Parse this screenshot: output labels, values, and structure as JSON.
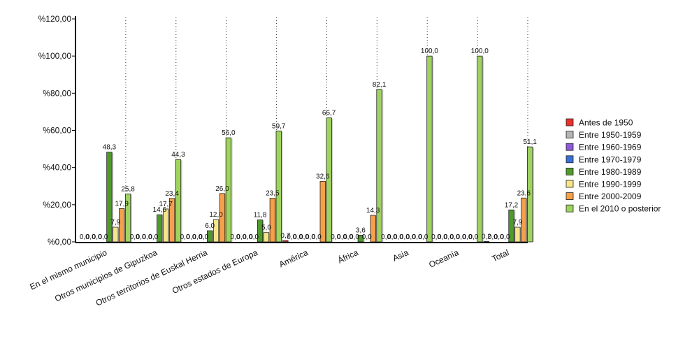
{
  "chart_data": {
    "type": "bar",
    "categories": [
      "En el mismo municipio",
      "Otros municipios de Gipuzkoa",
      "Otros territorios de Euskal Herria",
      "Otros estados de Europa",
      "América",
      "África",
      "Asia",
      "Oceanía",
      "Total"
    ],
    "ylim": [
      0,
      120
    ],
    "ytick_labels": [
      "%0,00",
      "%20,00",
      "%40,00",
      "%60,00",
      "%80,00",
      "%100,00",
      "%120,00"
    ],
    "grid": "vertical-dotted",
    "legend_position": "right",
    "series": [
      {
        "name": "Antes de 1950",
        "color": "#e8312a",
        "values": [
          0,
          0,
          0,
          0,
          0.7,
          0,
          0,
          0,
          0.2
        ],
        "labels": [
          "0,0",
          "0,0",
          "0,0",
          "0,0",
          "0,7",
          "0,0",
          "0,0",
          "0,0",
          "0,2"
        ]
      },
      {
        "name": "Entre 1950-1959",
        "color": "#b5b5b5",
        "values": [
          0,
          0,
          0,
          0,
          0,
          0,
          0,
          0,
          0
        ],
        "labels": [
          "0,0",
          "0,0",
          "0,0",
          "0,0",
          "0,0",
          "0,0",
          "0,0",
          "0,0",
          "0,0"
        ]
      },
      {
        "name": "Entre 1960-1969",
        "color": "#8e5ad6",
        "values": [
          0,
          0,
          0,
          0,
          0,
          0,
          0,
          0,
          0
        ],
        "labels": [
          "0,0",
          "0,0",
          "0,0",
          "0,0",
          "0,0",
          "0,0",
          "0,0",
          "0,0",
          "0,0"
        ]
      },
      {
        "name": "Entre 1970-1979",
        "color": "#3a6fd6",
        "values": [
          0,
          0,
          0,
          0,
          0,
          0,
          0,
          0,
          0
        ],
        "labels": [
          "0,0",
          "0,0",
          "0,0",
          "0,0",
          "0,0",
          "0,0",
          "0,0",
          "0,0",
          "0,0"
        ]
      },
      {
        "name": "Entre 1980-1989",
        "color": "#4f9a2b",
        "values": [
          48.3,
          14.6,
          6.0,
          11.8,
          0,
          3.6,
          0,
          0,
          17.2
        ],
        "labels": [
          "48,3",
          "14,6",
          "6,0",
          "11,8",
          "0,0",
          "3,6",
          "0,0",
          "0,0",
          "17,2"
        ]
      },
      {
        "name": "Entre 1990-1999",
        "color": "#f7e58a",
        "values": [
          7.9,
          17.7,
          12.0,
          5.0,
          0,
          0,
          0,
          0,
          7.9
        ],
        "labels": [
          "7,9",
          "17,7",
          "12,0",
          "5,0",
          "0,0",
          "0,0",
          "0,0",
          "0,0",
          "7,9"
        ]
      },
      {
        "name": "Entre 2000-2009",
        "color": "#f6a04c",
        "values": [
          17.9,
          23.4,
          26.0,
          23.5,
          32.6,
          14.3,
          0,
          0,
          23.6
        ],
        "labels": [
          "17,9",
          "23,4",
          "26,0",
          "23,5",
          "32,6",
          "14,3",
          "0,0",
          "0,0",
          "23,6"
        ]
      },
      {
        "name": "En el 2010 o posterior",
        "color": "#9fd35f",
        "values": [
          25.8,
          44.3,
          56.0,
          59.7,
          66.7,
          82.1,
          100.0,
          100.0,
          51.1
        ],
        "labels": [
          "25,8",
          "44,3",
          "56,0",
          "59,7",
          "66,7",
          "82,1",
          "100,0",
          "100,0",
          "51,1"
        ]
      }
    ]
  }
}
